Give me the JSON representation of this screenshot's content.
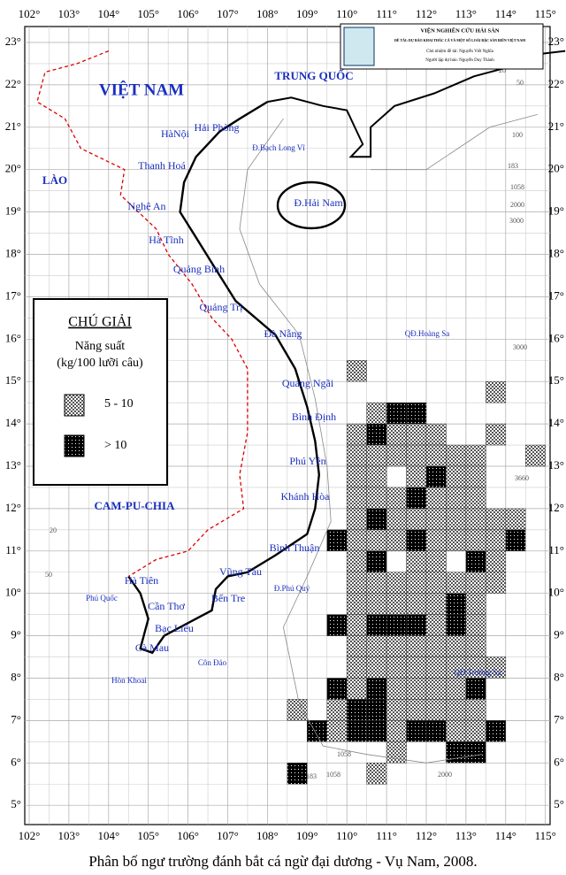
{
  "header": {
    "institute": "VIỆN NGHIÊN CỨU HẢI SẢN",
    "project": "ĐỀ TÀI: DỰ BÁO KHAI THÁC CÁ VÀ MỘT SỐ LOÀI ĐẶC SẢN BIỂN VIỆT NAM",
    "lead": "Chủ nhiệm đề tài: Nguyễn Viết Nghĩa",
    "forecaster": "Người lập dự báo: Nguyễn Duy Thành"
  },
  "legend": {
    "title": "CHÚ GIẢI",
    "subtitle": "Năng suất",
    "unit": "(kg/100 lưỡi câu)",
    "classes": [
      "5 - 10",
      "> 10"
    ]
  },
  "caption": "Phân bố ngư trường đánh bắt cá ngừ đại dương - Vụ Nam, 2008.",
  "lon_ticks": [
    {
      "value": 102,
      "label": "102°"
    },
    {
      "value": 103,
      "label": "103°"
    },
    {
      "value": 104,
      "label": "104°"
    },
    {
      "value": 105,
      "label": "105°"
    },
    {
      "value": 106,
      "label": "106°"
    },
    {
      "value": 107,
      "label": "107°"
    },
    {
      "value": 108,
      "label": "108°"
    },
    {
      "value": 109,
      "label": "109°"
    },
    {
      "value": 110,
      "label": "110°"
    },
    {
      "value": 111,
      "label": "111°"
    },
    {
      "value": 112,
      "label": "112°"
    },
    {
      "value": 113,
      "label": "113°"
    },
    {
      "value": 114,
      "label": "114°"
    },
    {
      "value": 115,
      "label": "115°"
    }
  ],
  "lat_ticks": [
    {
      "value": 5,
      "label": "5°"
    },
    {
      "value": 6,
      "label": "6°"
    },
    {
      "value": 7,
      "label": "7°"
    },
    {
      "value": 8,
      "label": "8°"
    },
    {
      "value": 9,
      "label": "9°"
    },
    {
      "value": 10,
      "label": "10°"
    },
    {
      "value": 11,
      "label": "11°"
    },
    {
      "value": 12,
      "label": "12°"
    },
    {
      "value": 13,
      "label": "13°"
    },
    {
      "value": 14,
      "label": "14°"
    },
    {
      "value": 15,
      "label": "15°"
    },
    {
      "value": 16,
      "label": "16°"
    },
    {
      "value": 17,
      "label": "17°"
    },
    {
      "value": 18,
      "label": "18°"
    },
    {
      "value": 19,
      "label": "19°"
    },
    {
      "value": 20,
      "label": "20°"
    },
    {
      "value": 21,
      "label": "21°"
    },
    {
      "value": 22,
      "label": "22°"
    },
    {
      "value": 23,
      "label": "23°"
    }
  ],
  "places": [
    "VIỆT NAM",
    "TRUNG QUỐC",
    "LÀO",
    "CAM-PU-CHIA",
    "HàNội",
    "Hải Phòng",
    "Đ.Bạch Long Vĩ",
    "Thanh Hoá",
    "Nghệ An",
    "Hà Tĩnh",
    "Quảng Bình",
    "Quảng Trị",
    "Đà Nẵng",
    "Đ.Hải Nam",
    "QĐ.Hoàng Sa",
    "Quảng Ngãi",
    "Bình Định",
    "Phú Yên",
    "Khánh Hòa",
    "Bình Thuận",
    "Vũng Tàu",
    "Đ.Phú Quý",
    "Bến Tre",
    "Hà Tiên",
    "Phú Quốc",
    "Cần Thơ",
    "Bạc Liêu",
    "Cà Mau",
    "Côn Đảo",
    "Hòn Khoai",
    "QĐ.Trường Sa"
  ],
  "depth_labels": [
    "20",
    "50",
    "100",
    "183",
    "1058",
    "2000",
    "3000",
    "3000",
    "3660",
    "1058",
    "183",
    "1058",
    "2000",
    "20",
    "50"
  ],
  "cells": [
    [
      110,
      15,
      0
    ],
    [
      113.5,
      14.5,
      0
    ],
    [
      110.5,
      14,
      0
    ],
    [
      111,
      14,
      1
    ],
    [
      111.5,
      14,
      1
    ],
    [
      110,
      13.5,
      0
    ],
    [
      110.5,
      13.5,
      1
    ],
    [
      111,
      13.5,
      0
    ],
    [
      111.5,
      13.5,
      0
    ],
    [
      112,
      13.5,
      0
    ],
    [
      113.5,
      13.5,
      0
    ],
    [
      110,
      13,
      0
    ],
    [
      110.5,
      13,
      0
    ],
    [
      111,
      13,
      0
    ],
    [
      111.5,
      13,
      0
    ],
    [
      112,
      13,
      0
    ],
    [
      112.5,
      13,
      0
    ],
    [
      113,
      13,
      0
    ],
    [
      114.5,
      13,
      0
    ],
    [
      110,
      12.5,
      0
    ],
    [
      110.5,
      12.5,
      0
    ],
    [
      111.5,
      12.5,
      0
    ],
    [
      112,
      12.5,
      1
    ],
    [
      112.5,
      12.5,
      0
    ],
    [
      113,
      12.5,
      0
    ],
    [
      110,
      12,
      0
    ],
    [
      110.5,
      12,
      0
    ],
    [
      111,
      12,
      0
    ],
    [
      111.5,
      12,
      1
    ],
    [
      112,
      12,
      0
    ],
    [
      112.5,
      12,
      0
    ],
    [
      113,
      12,
      0
    ],
    [
      110,
      11.5,
      0
    ],
    [
      110.5,
      11.5,
      1
    ],
    [
      111,
      11.5,
      0
    ],
    [
      111.5,
      11.5,
      0
    ],
    [
      112,
      11.5,
      0
    ],
    [
      112.5,
      11.5,
      0
    ],
    [
      113,
      11.5,
      0
    ],
    [
      113.5,
      11.5,
      0
    ],
    [
      114,
      11.5,
      0
    ],
    [
      109.5,
      11,
      1
    ],
    [
      110,
      11,
      0
    ],
    [
      110.5,
      11,
      0
    ],
    [
      111,
      11,
      0
    ],
    [
      111.5,
      11,
      1
    ],
    [
      112,
      11,
      0
    ],
    [
      112.5,
      11,
      0
    ],
    [
      113,
      11,
      0
    ],
    [
      113.5,
      11,
      0
    ],
    [
      114,
      11,
      1
    ],
    [
      110,
      10.5,
      0
    ],
    [
      110.5,
      10.5,
      1
    ],
    [
      111.5,
      10.5,
      0
    ],
    [
      112,
      10.5,
      0
    ],
    [
      113,
      10.5,
      1
    ],
    [
      113.5,
      10.5,
      0
    ],
    [
      110,
      10,
      0
    ],
    [
      110.5,
      10,
      0
    ],
    [
      111,
      10,
      0
    ],
    [
      111.5,
      10,
      0
    ],
    [
      112,
      10,
      0
    ],
    [
      112.5,
      10,
      0
    ],
    [
      113,
      10,
      0
    ],
    [
      113.5,
      10,
      0
    ],
    [
      110,
      9.5,
      0
    ],
    [
      110.5,
      9.5,
      0
    ],
    [
      111,
      9.5,
      0
    ],
    [
      111.5,
      9.5,
      0
    ],
    [
      112,
      9.5,
      0
    ],
    [
      112.5,
      9.5,
      1
    ],
    [
      113,
      9.5,
      0
    ],
    [
      109.5,
      9,
      1
    ],
    [
      110,
      9,
      0
    ],
    [
      110.5,
      9,
      1
    ],
    [
      111,
      9,
      1
    ],
    [
      111.5,
      9,
      1
    ],
    [
      112,
      9,
      0
    ],
    [
      112.5,
      9,
      1
    ],
    [
      113,
      9,
      0
    ],
    [
      110,
      8.5,
      0
    ],
    [
      110.5,
      8.5,
      0
    ],
    [
      111,
      8.5,
      0
    ],
    [
      111.5,
      8.5,
      0
    ],
    [
      112,
      8.5,
      0
    ],
    [
      112.5,
      8.5,
      0
    ],
    [
      113,
      8.5,
      0
    ],
    [
      110,
      8,
      0
    ],
    [
      110.5,
      8,
      0
    ],
    [
      111,
      8,
      0
    ],
    [
      111.5,
      8,
      0
    ],
    [
      112,
      8,
      0
    ],
    [
      112.5,
      8,
      0
    ],
    [
      113,
      8,
      0
    ],
    [
      113.5,
      8,
      0
    ],
    [
      109.5,
      7.5,
      1
    ],
    [
      110,
      7.5,
      0
    ],
    [
      110.5,
      7.5,
      1
    ],
    [
      111,
      7.5,
      0
    ],
    [
      111.5,
      7.5,
      0
    ],
    [
      112,
      7.5,
      0
    ],
    [
      112.5,
      7.5,
      0
    ],
    [
      113,
      7.5,
      1
    ],
    [
      108.5,
      7,
      0
    ],
    [
      109.5,
      7,
      0
    ],
    [
      110,
      7,
      1
    ],
    [
      110.5,
      7,
      1
    ],
    [
      111,
      7,
      0
    ],
    [
      111.5,
      7,
      0
    ],
    [
      112,
      7,
      0
    ],
    [
      112.5,
      7,
      0
    ],
    [
      113,
      7,
      0
    ],
    [
      109,
      6.5,
      1
    ],
    [
      109.5,
      6.5,
      0
    ],
    [
      110,
      6.5,
      1
    ],
    [
      110.5,
      6.5,
      1
    ],
    [
      111,
      6.5,
      0
    ],
    [
      111.5,
      6.5,
      1
    ],
    [
      112,
      6.5,
      1
    ],
    [
      112.5,
      6.5,
      0
    ],
    [
      113,
      6.5,
      0
    ],
    [
      113.5,
      6.5,
      1
    ],
    [
      111,
      6,
      0
    ],
    [
      112.5,
      6,
      1
    ],
    [
      113,
      6,
      1
    ],
    [
      108.5,
      5.5,
      1
    ],
    [
      110.5,
      5.5,
      0
    ]
  ]
}
